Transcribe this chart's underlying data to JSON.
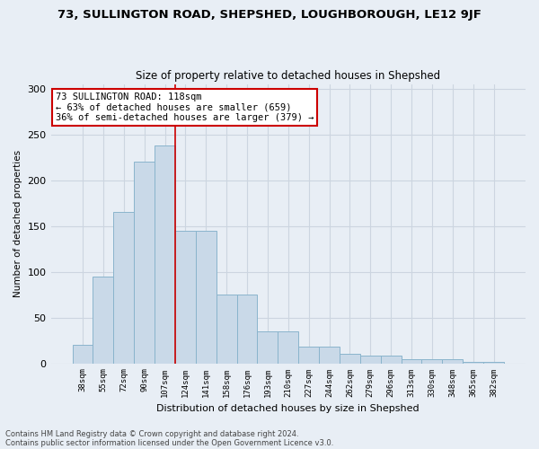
{
  "title": "73, SULLINGTON ROAD, SHEPSHED, LOUGHBOROUGH, LE12 9JF",
  "subtitle": "Size of property relative to detached houses in Shepshed",
  "xlabel": "Distribution of detached houses by size in Shepshed",
  "ylabel": "Number of detached properties",
  "bar_labels": [
    "38sqm",
    "55sqm",
    "72sqm",
    "90sqm",
    "107sqm",
    "124sqm",
    "141sqm",
    "158sqm",
    "176sqm",
    "193sqm",
    "210sqm",
    "227sqm",
    "244sqm",
    "262sqm",
    "279sqm",
    "296sqm",
    "313sqm",
    "330sqm",
    "348sqm",
    "365sqm",
    "382sqm"
  ],
  "bar_values": [
    20,
    95,
    165,
    220,
    238,
    145,
    145,
    75,
    75,
    35,
    35,
    18,
    18,
    10,
    8,
    8,
    4,
    4,
    4,
    2,
    2
  ],
  "bar_color": "#c9d9e8",
  "bar_edge_color": "#8ab4cc",
  "grid_color": "#ccd5e0",
  "background_color": "#e8eef5",
  "vline_color": "#cc0000",
  "annotation_text": "73 SULLINGTON ROAD: 118sqm\n← 63% of detached houses are smaller (659)\n36% of semi-detached houses are larger (379) →",
  "annotation_box_color": "#ffffff",
  "annotation_box_edge": "#cc0000",
  "footnote1": "Contains HM Land Registry data © Crown copyright and database right 2024.",
  "footnote2": "Contains public sector information licensed under the Open Government Licence v3.0.",
  "ylim": [
    0,
    305
  ],
  "yticks": [
    0,
    50,
    100,
    150,
    200,
    250,
    300
  ],
  "title_fontsize": 9.5,
  "subtitle_fontsize": 8.5,
  "bar_fontsize": 7,
  "ylabel_fontsize": 7.5,
  "xlabel_fontsize": 8
}
